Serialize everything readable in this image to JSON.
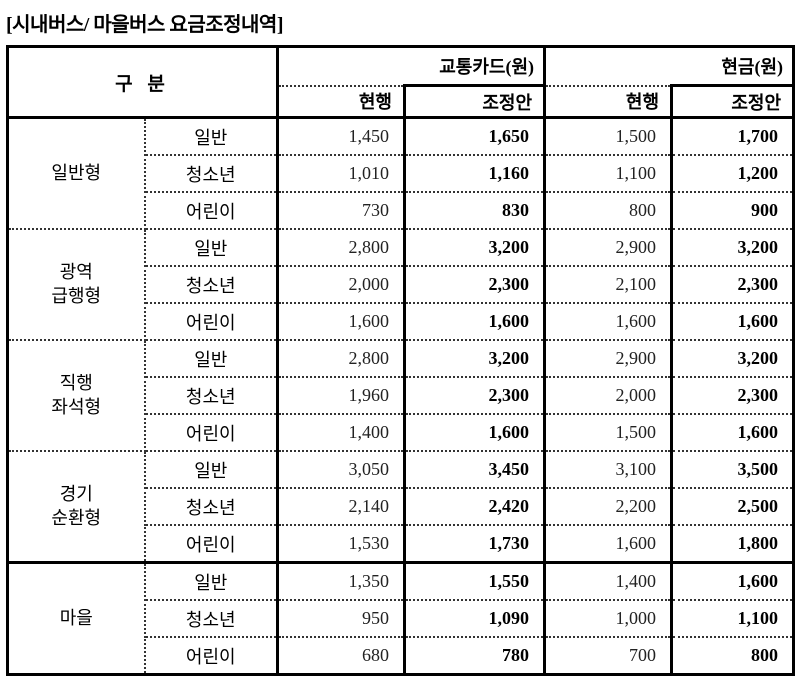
{
  "title": "[시내버스/ 마을버스 요금조정내역]",
  "table": {
    "header": {
      "category": "구 분",
      "sections": [
        {
          "label": "교통카드(원)"
        },
        {
          "label": "현금(원)"
        }
      ],
      "current_label": "현행",
      "adjusted_label": "조정안"
    },
    "groups": [
      {
        "name": "일반형",
        "rows": [
          {
            "type": "일반",
            "card_current": "1,450",
            "card_adjusted": "1,650",
            "cash_current": "1,500",
            "cash_adjusted": "1,700"
          },
          {
            "type": "청소년",
            "card_current": "1,010",
            "card_adjusted": "1,160",
            "cash_current": "1,100",
            "cash_adjusted": "1,200"
          },
          {
            "type": "어린이",
            "card_current": "730",
            "card_adjusted": "830",
            "cash_current": "800",
            "cash_adjusted": "900"
          }
        ]
      },
      {
        "name": "광역\n급행형",
        "rows": [
          {
            "type": "일반",
            "card_current": "2,800",
            "card_adjusted": "3,200",
            "cash_current": "2,900",
            "cash_adjusted": "3,200"
          },
          {
            "type": "청소년",
            "card_current": "2,000",
            "card_adjusted": "2,300",
            "cash_current": "2,100",
            "cash_adjusted": "2,300"
          },
          {
            "type": "어린이",
            "card_current": "1,600",
            "card_adjusted": "1,600",
            "cash_current": "1,600",
            "cash_adjusted": "1,600"
          }
        ]
      },
      {
        "name": "직행\n좌석형",
        "rows": [
          {
            "type": "일반",
            "card_current": "2,800",
            "card_adjusted": "3,200",
            "cash_current": "2,900",
            "cash_adjusted": "3,200"
          },
          {
            "type": "청소년",
            "card_current": "1,960",
            "card_adjusted": "2,300",
            "cash_current": "2,000",
            "cash_adjusted": "2,300"
          },
          {
            "type": "어린이",
            "card_current": "1,400",
            "card_adjusted": "1,600",
            "cash_current": "1,500",
            "cash_adjusted": "1,600"
          }
        ]
      },
      {
        "name": "경기\n순환형",
        "rows": [
          {
            "type": "일반",
            "card_current": "3,050",
            "card_adjusted": "3,450",
            "cash_current": "3,100",
            "cash_adjusted": "3,500"
          },
          {
            "type": "청소년",
            "card_current": "2,140",
            "card_adjusted": "2,420",
            "cash_current": "2,200",
            "cash_adjusted": "2,500"
          },
          {
            "type": "어린이",
            "card_current": "1,530",
            "card_adjusted": "1,730",
            "cash_current": "1,600",
            "cash_adjusted": "1,800"
          }
        ]
      },
      {
        "name": "마을",
        "solid_top_separator": true,
        "rows": [
          {
            "type": "일반",
            "card_current": "1,350",
            "card_adjusted": "1,550",
            "cash_current": "1,400",
            "cash_adjusted": "1,600"
          },
          {
            "type": "청소년",
            "card_current": "950",
            "card_adjusted": "1,090",
            "cash_current": "1,000",
            "cash_adjusted": "1,100"
          },
          {
            "type": "어린이",
            "card_current": "680",
            "card_adjusted": "780",
            "cash_current": "700",
            "cash_adjusted": "800"
          }
        ]
      }
    ]
  }
}
